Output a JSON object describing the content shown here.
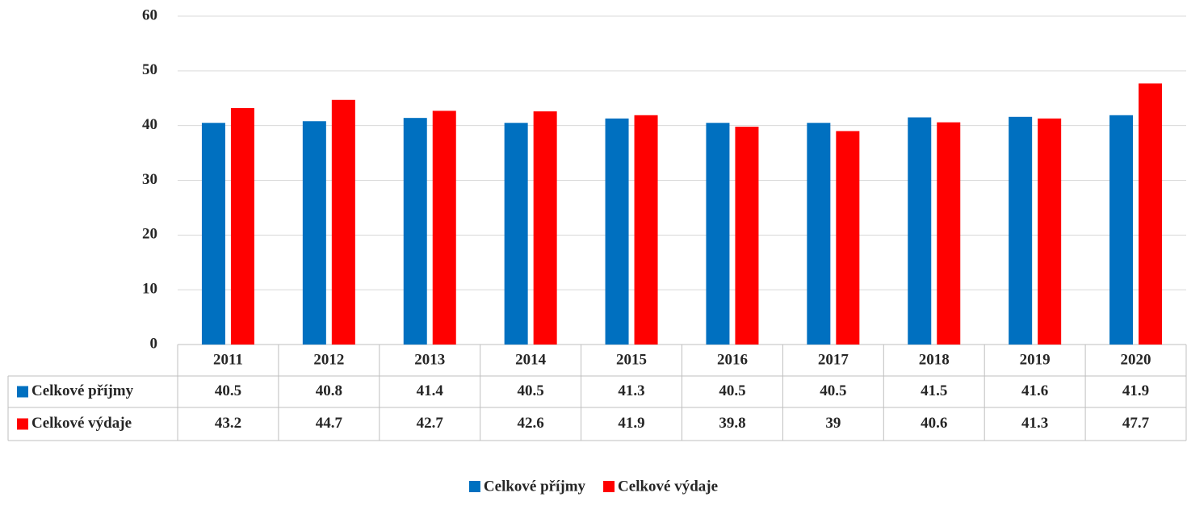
{
  "chart_data": {
    "type": "bar",
    "categories": [
      "2011",
      "2012",
      "2013",
      "2014",
      "2015",
      "2016",
      "2017",
      "2018",
      "2019",
      "2020"
    ],
    "series": [
      {
        "name": "Celkové příjmy",
        "color": "#0070c0",
        "values": [
          40.5,
          40.8,
          41.4,
          40.5,
          41.3,
          40.5,
          40.5,
          41.5,
          41.6,
          41.9
        ]
      },
      {
        "name": "Celkové výdaje",
        "color": "#ff0000",
        "values": [
          43.2,
          44.7,
          42.7,
          42.6,
          41.9,
          39.8,
          39,
          40.6,
          41.3,
          47.7
        ]
      }
    ],
    "ylim": [
      0,
      60
    ],
    "yticks": [
      0,
      10,
      20,
      30,
      40,
      50,
      60
    ],
    "grid": true,
    "legend": "bottom"
  }
}
